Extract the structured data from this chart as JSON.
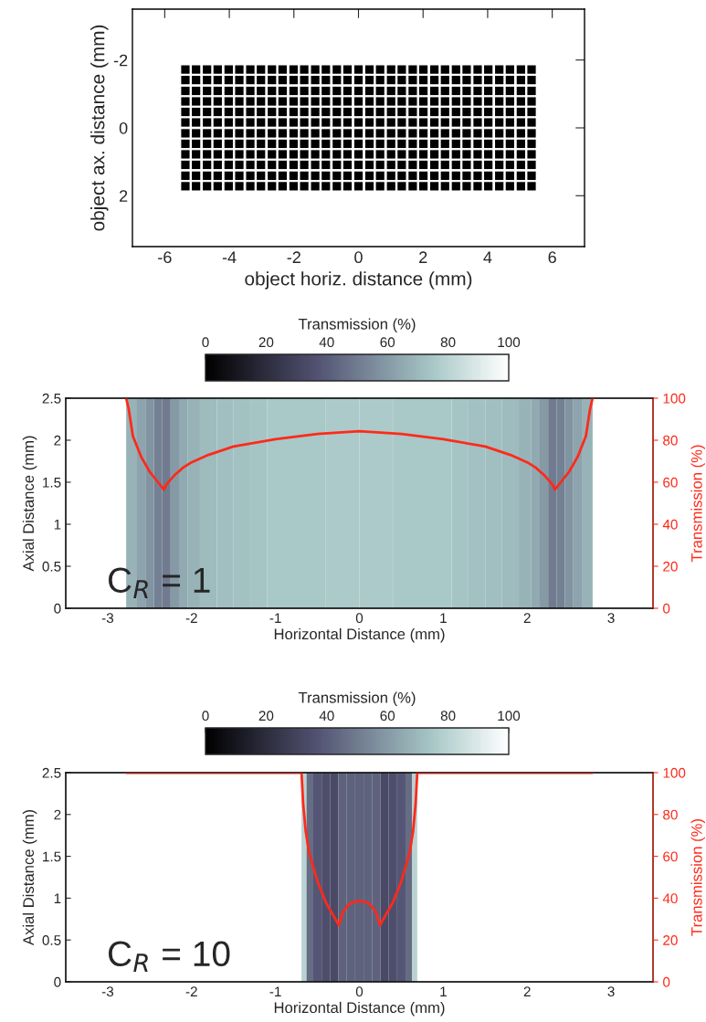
{
  "chart_data": [
    {
      "type": "scatter",
      "xlabel": "object horiz. distance (mm)",
      "ylabel": "object ax. distance (mm)",
      "marker": "square",
      "xlim": [
        -7,
        7
      ],
      "ylim": [
        3.5,
        -3.5
      ],
      "xticks": [
        -6,
        -4,
        -2,
        0,
        2,
        4,
        6
      ],
      "yticks": [
        -2,
        0,
        2
      ],
      "x": [
        -5.36,
        -5.03,
        -4.69,
        -4.36,
        -4.02,
        -3.69,
        -3.35,
        -3.02,
        -2.68,
        -2.35,
        -2.01,
        -1.68,
        -1.34,
        -1.01,
        -0.67,
        -0.34,
        0,
        0.34,
        0.67,
        1.01,
        1.34,
        1.68,
        2.01,
        2.35,
        2.68,
        3.02,
        3.35,
        3.69,
        4.02,
        4.36,
        4.69,
        5.03,
        5.36
      ],
      "series": [
        {
          "color": "#000000",
          "values": [
            -1.72,
            -1.72,
            -1.72,
            -1.72,
            -1.72,
            -1.72,
            -1.72,
            -1.72,
            -1.72,
            -1.72,
            -1.72,
            -1.72,
            -1.72,
            -1.72,
            -1.72,
            -1.72,
            -1.72,
            -1.72,
            -1.72,
            -1.72,
            -1.72,
            -1.72,
            -1.72,
            -1.72,
            -1.72,
            -1.72,
            -1.72,
            -1.72,
            -1.72,
            -1.72,
            -1.72,
            -1.72,
            -1.72
          ]
        },
        {
          "color": "#000000",
          "values": [
            -1.41,
            -1.41,
            -1.41,
            -1.41,
            -1.41,
            -1.41,
            -1.41,
            -1.41,
            -1.41,
            -1.41,
            -1.41,
            -1.41,
            -1.41,
            -1.41,
            -1.41,
            -1.41,
            -1.41,
            -1.41,
            -1.41,
            -1.41,
            -1.41,
            -1.41,
            -1.41,
            -1.41,
            -1.41,
            -1.41,
            -1.41,
            -1.41,
            -1.41,
            -1.41,
            -1.41,
            -1.41,
            -1.41
          ]
        },
        {
          "color": "#000000",
          "values": [
            -1.09,
            -1.09,
            -1.09,
            -1.09,
            -1.09,
            -1.09,
            -1.09,
            -1.09,
            -1.09,
            -1.09,
            -1.09,
            -1.09,
            -1.09,
            -1.09,
            -1.09,
            -1.09,
            -1.09,
            -1.09,
            -1.09,
            -1.09,
            -1.09,
            -1.09,
            -1.09,
            -1.09,
            -1.09,
            -1.09,
            -1.09,
            -1.09,
            -1.09,
            -1.09,
            -1.09,
            -1.09,
            -1.09
          ]
        },
        {
          "color": "#000000",
          "values": [
            -0.78,
            -0.78,
            -0.78,
            -0.78,
            -0.78,
            -0.78,
            -0.78,
            -0.78,
            -0.78,
            -0.78,
            -0.78,
            -0.78,
            -0.78,
            -0.78,
            -0.78,
            -0.78,
            -0.78,
            -0.78,
            -0.78,
            -0.78,
            -0.78,
            -0.78,
            -0.78,
            -0.78,
            -0.78,
            -0.78,
            -0.78,
            -0.78,
            -0.78,
            -0.78,
            -0.78,
            -0.78,
            -0.78
          ]
        },
        {
          "color": "#000000",
          "values": [
            -0.47,
            -0.47,
            -0.47,
            -0.47,
            -0.47,
            -0.47,
            -0.47,
            -0.47,
            -0.47,
            -0.47,
            -0.47,
            -0.47,
            -0.47,
            -0.47,
            -0.47,
            -0.47,
            -0.47,
            -0.47,
            -0.47,
            -0.47,
            -0.47,
            -0.47,
            -0.47,
            -0.47,
            -0.47,
            -0.47,
            -0.47,
            -0.47,
            -0.47,
            -0.47,
            -0.47,
            -0.47,
            -0.47
          ]
        },
        {
          "color": "#000000",
          "values": [
            -0.16,
            -0.16,
            -0.16,
            -0.16,
            -0.16,
            -0.16,
            -0.16,
            -0.16,
            -0.16,
            -0.16,
            -0.16,
            -0.16,
            -0.16,
            -0.16,
            -0.16,
            -0.16,
            -0.16,
            -0.16,
            -0.16,
            -0.16,
            -0.16,
            -0.16,
            -0.16,
            -0.16,
            -0.16,
            -0.16,
            -0.16,
            -0.16,
            -0.16,
            -0.16,
            -0.16,
            -0.16,
            -0.16
          ]
        },
        {
          "color": "#000000",
          "values": [
            0.16,
            0.16,
            0.16,
            0.16,
            0.16,
            0.16,
            0.16,
            0.16,
            0.16,
            0.16,
            0.16,
            0.16,
            0.16,
            0.16,
            0.16,
            0.16,
            0.16,
            0.16,
            0.16,
            0.16,
            0.16,
            0.16,
            0.16,
            0.16,
            0.16,
            0.16,
            0.16,
            0.16,
            0.16,
            0.16,
            0.16,
            0.16,
            0.16
          ]
        },
        {
          "color": "#000000",
          "values": [
            0.47,
            0.47,
            0.47,
            0.47,
            0.47,
            0.47,
            0.47,
            0.47,
            0.47,
            0.47,
            0.47,
            0.47,
            0.47,
            0.47,
            0.47,
            0.47,
            0.47,
            0.47,
            0.47,
            0.47,
            0.47,
            0.47,
            0.47,
            0.47,
            0.47,
            0.47,
            0.47,
            0.47,
            0.47,
            0.47,
            0.47,
            0.47,
            0.47
          ]
        },
        {
          "color": "#000000",
          "values": [
            0.78,
            0.78,
            0.78,
            0.78,
            0.78,
            0.78,
            0.78,
            0.78,
            0.78,
            0.78,
            0.78,
            0.78,
            0.78,
            0.78,
            0.78,
            0.78,
            0.78,
            0.78,
            0.78,
            0.78,
            0.78,
            0.78,
            0.78,
            0.78,
            0.78,
            0.78,
            0.78,
            0.78,
            0.78,
            0.78,
            0.78,
            0.78,
            0.78
          ]
        },
        {
          "color": "#000000",
          "values": [
            1.09,
            1.09,
            1.09,
            1.09,
            1.09,
            1.09,
            1.09,
            1.09,
            1.09,
            1.09,
            1.09,
            1.09,
            1.09,
            1.09,
            1.09,
            1.09,
            1.09,
            1.09,
            1.09,
            1.09,
            1.09,
            1.09,
            1.09,
            1.09,
            1.09,
            1.09,
            1.09,
            1.09,
            1.09,
            1.09,
            1.09,
            1.09,
            1.09
          ]
        },
        {
          "color": "#000000",
          "values": [
            1.41,
            1.41,
            1.41,
            1.41,
            1.41,
            1.41,
            1.41,
            1.41,
            1.41,
            1.41,
            1.41,
            1.41,
            1.41,
            1.41,
            1.41,
            1.41,
            1.41,
            1.41,
            1.41,
            1.41,
            1.41,
            1.41,
            1.41,
            1.41,
            1.41,
            1.41,
            1.41,
            1.41,
            1.41,
            1.41,
            1.41,
            1.41,
            1.41
          ]
        },
        {
          "color": "#000000",
          "values": [
            1.72,
            1.72,
            1.72,
            1.72,
            1.72,
            1.72,
            1.72,
            1.72,
            1.72,
            1.72,
            1.72,
            1.72,
            1.72,
            1.72,
            1.72,
            1.72,
            1.72,
            1.72,
            1.72,
            1.72,
            1.72,
            1.72,
            1.72,
            1.72,
            1.72,
            1.72,
            1.72,
            1.72,
            1.72,
            1.72,
            1.72,
            1.72,
            1.72
          ]
        }
      ]
    },
    {
      "type": "heatmap",
      "xlabel": "Horizontal Distance (mm)",
      "ylabel": "Axial Distance (mm)",
      "y2label": "Transmission (%)",
      "clabel": "Transmission (%)",
      "clim": [
        0,
        100
      ],
      "cticks": [
        0,
        20,
        40,
        60,
        80,
        100
      ],
      "xlim": [
        -3.5,
        3.5
      ],
      "ylim": [
        0,
        2.5
      ],
      "xticks": [
        -3,
        -2,
        -1,
        0,
        1,
        2,
        3
      ],
      "yticks": [
        0,
        0.5,
        1,
        1.5,
        2,
        2.5
      ],
      "y2lim": [
        0,
        100
      ],
      "y2ticks": [
        0,
        20,
        40,
        60,
        80,
        100
      ],
      "x": [
        -2.72,
        -2.6,
        -2.5,
        -2.4,
        -2.3,
        -2.2,
        -2.1,
        -2.0,
        -1.8,
        -1.6,
        -1.4,
        -1.2,
        -1.0,
        -0.6,
        -0.2,
        0.2,
        0.6,
        1.0,
        1.2,
        1.4,
        1.6,
        1.8,
        2.0,
        2.1,
        2.2,
        2.3,
        2.4,
        2.5,
        2.6,
        2.72
      ],
      "cells": [
        [
          68,
          63,
          58,
          52,
          50,
          60,
          65,
          68,
          71,
          72,
          73,
          74,
          75,
          75,
          76,
          76,
          75,
          75,
          74,
          73,
          72,
          71,
          68,
          65,
          60,
          50,
          52,
          58,
          63,
          68
        ]
      ],
      "series": [
        {
          "type": "line",
          "axis": "y2",
          "color": "#ff2a1a",
          "x": [
            -2.78,
            -2.75,
            -2.7,
            -2.6,
            -2.5,
            -2.4,
            -2.33,
            -2.3,
            -2.2,
            -2.1,
            -2.0,
            -1.8,
            -1.5,
            -1.0,
            -0.5,
            0,
            0.5,
            1.0,
            1.5,
            1.8,
            2.0,
            2.1,
            2.2,
            2.3,
            2.33,
            2.4,
            2.5,
            2.6,
            2.7,
            2.75,
            2.78
          ],
          "values": [
            100,
            95,
            82,
            72,
            65,
            60,
            56.5,
            59,
            63.5,
            67,
            69.5,
            73,
            77,
            80.5,
            83,
            84.3,
            83,
            80.5,
            77,
            73,
            69.5,
            67,
            63.5,
            59,
            56.5,
            60,
            65,
            72,
            82,
            95,
            100
          ]
        }
      ],
      "annotations": [
        "C$_{R}$ = 1"
      ]
    },
    {
      "type": "heatmap",
      "xlabel": "Horizontal Distance (mm)",
      "ylabel": "Axial Distance (mm)",
      "y2label": "Transmission (%)",
      "clabel": "Transmission (%)",
      "clim": [
        0,
        100
      ],
      "cticks": [
        0,
        20,
        40,
        60,
        80,
        100
      ],
      "xlim": [
        -3.5,
        3.5
      ],
      "ylim": [
        0,
        2.5
      ],
      "xticks": [
        -3,
        -2,
        -1,
        0,
        1,
        2,
        3
      ],
      "yticks": [
        0,
        0.5,
        1,
        1.5,
        2,
        2.5
      ],
      "y2lim": [
        0,
        100
      ],
      "y2ticks": [
        0,
        20,
        40,
        60,
        80,
        100
      ],
      "x": [
        -0.66,
        -0.6,
        -0.5,
        -0.4,
        -0.3,
        -0.2,
        -0.1,
        0,
        0.1,
        0.2,
        0.3,
        0.4,
        0.5,
        0.6,
        0.66
      ],
      "cells": [
        [
          80,
          45,
          38,
          35,
          33,
          42,
          42,
          42,
          42,
          42,
          33,
          35,
          38,
          45,
          80
        ]
      ],
      "series": [
        {
          "type": "line",
          "axis": "y2",
          "color": "#ff2a1a",
          "x": [
            -2.78,
            -0.69,
            -0.67,
            -0.64,
            -0.6,
            -0.5,
            -0.4,
            -0.3,
            -0.245,
            -0.2,
            -0.15,
            -0.1,
            0,
            0.1,
            0.15,
            0.2,
            0.245,
            0.3,
            0.4,
            0.5,
            0.6,
            0.64,
            0.67,
            0.69,
            2.78
          ],
          "values": [
            100,
            100,
            85,
            72,
            62,
            48,
            38,
            31,
            27,
            33,
            36,
            37.8,
            38.7,
            37.8,
            36,
            33,
            27,
            31,
            38,
            48,
            62,
            72,
            85,
            100,
            100
          ]
        }
      ],
      "annotations": [
        "C$_{R}$ = 10"
      ]
    }
  ]
}
